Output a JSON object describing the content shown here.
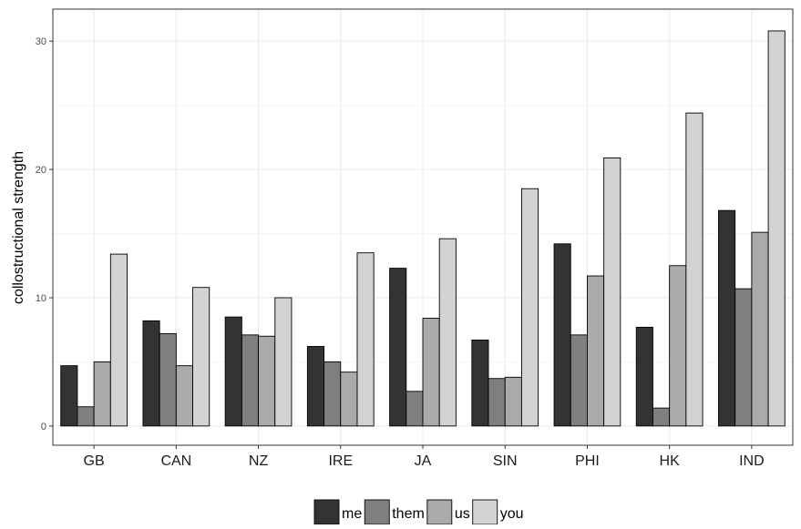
{
  "chart_data": {
    "type": "bar",
    "title": "",
    "xlabel": "",
    "ylabel": "collostructional strength",
    "ylim": [
      -1.5,
      32.5
    ],
    "yticks": [
      0,
      10,
      20,
      30
    ],
    "categories": [
      "GB",
      "CAN",
      "NZ",
      "IRE",
      "JA",
      "SIN",
      "PHI",
      "HK",
      "IND"
    ],
    "grid": true,
    "legend_position": "bottom",
    "series": [
      {
        "name": "me",
        "color": "#333333",
        "values": [
          4.7,
          8.2,
          8.5,
          6.2,
          12.3,
          6.7,
          14.2,
          7.7,
          16.8
        ]
      },
      {
        "name": "them",
        "color": "#7f7f7f",
        "values": [
          1.5,
          7.2,
          7.1,
          5.0,
          2.7,
          3.7,
          7.1,
          1.4,
          10.7
        ]
      },
      {
        "name": "us",
        "color": "#aaaaaa",
        "values": [
          5.0,
          4.7,
          7.0,
          4.2,
          8.4,
          3.8,
          11.7,
          12.5,
          15.1
        ]
      },
      {
        "name": "you",
        "color": "#d3d3d3",
        "values": [
          13.4,
          10.8,
          10.0,
          13.5,
          14.6,
          18.5,
          20.9,
          24.4,
          30.8
        ]
      }
    ]
  }
}
